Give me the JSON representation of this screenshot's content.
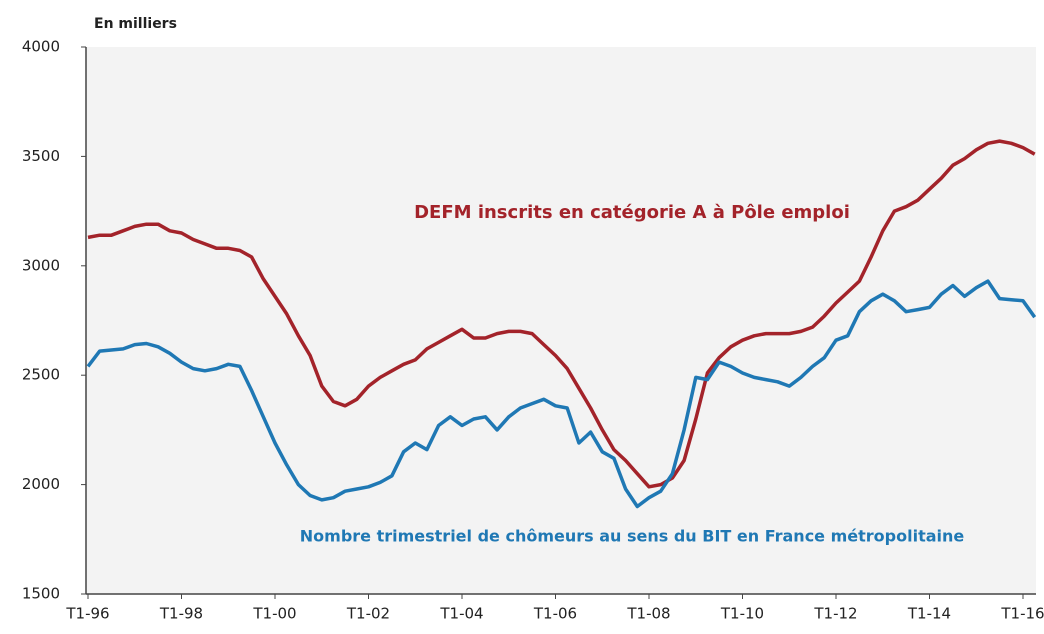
{
  "chart_data": {
    "type": "line",
    "y_label": "En milliers",
    "categories": [
      "T1-96",
      null,
      null,
      null,
      null,
      null,
      null,
      null,
      "T1-98",
      null,
      null,
      null,
      null,
      null,
      null,
      null,
      "T1-00",
      null,
      null,
      null,
      null,
      null,
      null,
      null,
      "T1-02",
      null,
      null,
      null,
      null,
      null,
      null,
      null,
      "T1-04",
      null,
      null,
      null,
      null,
      null,
      null,
      null,
      "T1-06",
      null,
      null,
      null,
      null,
      null,
      null,
      null,
      "T1-08",
      null,
      null,
      null,
      null,
      null,
      null,
      null,
      "T1-10",
      null,
      null,
      null,
      null,
      null,
      null,
      null,
      "T1-12",
      null,
      null,
      null,
      null,
      null,
      null,
      null,
      "T1-14",
      null,
      null,
      null,
      null,
      null,
      null,
      null,
      "T1-16",
      null
    ],
    "series": [
      {
        "name": "DEFM inscrits en catégorie A à Pôle emploi",
        "color": "#a3232a",
        "values": [
          3130,
          3140,
          3140,
          3160,
          3180,
          3190,
          3190,
          3160,
          3150,
          3120,
          3100,
          3080,
          3080,
          3070,
          3040,
          2940,
          2860,
          2780,
          2680,
          2590,
          2450,
          2380,
          2360,
          2390,
          2450,
          2490,
          2520,
          2550,
          2570,
          2620,
          2650,
          2680,
          2710,
          2670,
          2670,
          2690,
          2700,
          2700,
          2690,
          2640,
          2590,
          2530,
          2440,
          2350,
          2250,
          2160,
          2110,
          2050,
          1990,
          2000,
          2030,
          2110,
          2300,
          2510,
          2580,
          2630,
          2660,
          2680,
          2690,
          2690,
          2690,
          2700,
          2720,
          2770,
          2830,
          2880,
          2930,
          3040,
          3160,
          3250,
          3270,
          3300,
          3350,
          3400,
          3460,
          3490,
          3530,
          3560,
          3570,
          3560,
          3540,
          3510
        ]
      },
      {
        "name": "Nombre trimestriel de chômeurs au sens du BIT en France métropolitaine",
        "color": "#1f78b4",
        "values": [
          2540,
          2610,
          2615,
          2620,
          2640,
          2645,
          2630,
          2600,
          2560,
          2530,
          2520,
          2530,
          2550,
          2540,
          2430,
          2310,
          2190,
          2090,
          2000,
          1950,
          1930,
          1940,
          1970,
          1980,
          1990,
          2010,
          2040,
          2150,
          2190,
          2160,
          2270,
          2310,
          2270,
          2300,
          2310,
          2250,
          2310,
          2350,
          2370,
          2390,
          2360,
          2350,
          2190,
          2240,
          2150,
          2120,
          1980,
          1900,
          1940,
          1970,
          2050,
          2250,
          2490,
          2480,
          2560,
          2540,
          2510,
          2490,
          2480,
          2470,
          2450,
          2490,
          2540,
          2580,
          2660,
          2680,
          2790,
          2840,
          2870,
          2840,
          2790,
          2800,
          2810,
          2870,
          2910,
          2860,
          2900,
          2930,
          2850,
          2845,
          2840,
          2765
        ]
      }
    ],
    "ylim": [
      1500,
      4000
    ],
    "yticks": [
      1500,
      2000,
      2500,
      3000,
      3500,
      4000
    ],
    "grid": false
  }
}
